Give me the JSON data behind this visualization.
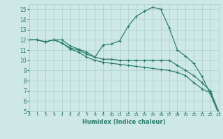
{
  "xlabel": "Humidex (Indice chaleur)",
  "xlim": [
    0,
    23
  ],
  "ylim": [
    5,
    15.5
  ],
  "yticks": [
    5,
    6,
    7,
    8,
    9,
    10,
    11,
    12,
    13,
    14,
    15
  ],
  "xticks": [
    0,
    1,
    2,
    3,
    4,
    5,
    6,
    7,
    8,
    9,
    10,
    11,
    12,
    13,
    14,
    15,
    16,
    17,
    18,
    19,
    20,
    21,
    22,
    23
  ],
  "xtick_labels": [
    "0",
    "1",
    "2",
    "3",
    "4",
    "5",
    "6",
    "7",
    "8",
    "9",
    "10",
    "11",
    "12",
    "13",
    "14",
    "15",
    "16",
    "17",
    "18",
    "19",
    "20",
    "21",
    "22",
    "23"
  ],
  "background_color": "#cde8e6",
  "grid_color": "#aacfcc",
  "line_color": "#2a7a6a",
  "lines": [
    {
      "x": [
        0,
        1,
        2,
        3,
        4,
        5,
        6,
        7,
        8,
        9,
        10,
        11,
        12,
        13,
        14,
        15,
        16,
        17,
        18,
        19,
        20,
        21,
        22,
        23
      ],
      "y": [
        12.0,
        12.0,
        11.8,
        12.0,
        12.0,
        11.4,
        11.1,
        10.8,
        10.3,
        11.5,
        11.6,
        11.9,
        13.3,
        14.3,
        14.8,
        15.2,
        15.0,
        13.2,
        11.0,
        10.4,
        9.7,
        8.4,
        6.7,
        4.8
      ]
    },
    {
      "x": [
        0,
        1,
        2,
        3,
        4,
        5,
        6,
        7,
        8,
        9,
        10,
        11,
        12,
        13,
        14,
        15,
        16,
        17,
        18,
        19,
        20,
        21,
        22,
        23
      ],
      "y": [
        12.0,
        12.0,
        11.8,
        12.0,
        11.7,
        11.2,
        11.0,
        10.6,
        10.3,
        10.1,
        10.1,
        10.0,
        10.0,
        10.0,
        10.0,
        10.0,
        10.0,
        10.0,
        9.5,
        9.0,
        8.5,
        7.8,
        7.0,
        5.0
      ]
    },
    {
      "x": [
        0,
        1,
        2,
        3,
        4,
        5,
        6,
        7,
        8,
        9,
        10,
        11,
        12,
        13,
        14,
        15,
        16,
        17,
        18,
        19,
        20,
        21,
        22,
        23
      ],
      "y": [
        12.0,
        12.0,
        11.8,
        12.0,
        11.7,
        11.1,
        10.8,
        10.3,
        10.0,
        9.8,
        9.7,
        9.6,
        9.5,
        9.4,
        9.3,
        9.2,
        9.1,
        9.0,
        8.8,
        8.5,
        7.8,
        7.2,
        6.8,
        4.8
      ]
    }
  ]
}
